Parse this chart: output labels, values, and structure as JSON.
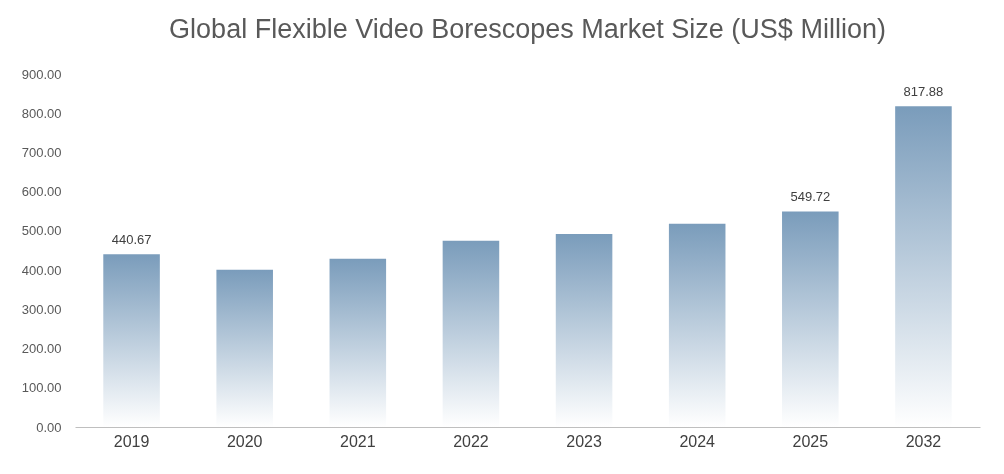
{
  "chart_data": {
    "type": "bar",
    "title": "Global Flexible Video Borescopes Market Size (US$ Million)",
    "categories": [
      "2019",
      "2020",
      "2021",
      "2022",
      "2023",
      "2024",
      "2025",
      "2032"
    ],
    "values": [
      440.67,
      401,
      429,
      475,
      492,
      518,
      549.72,
      817.88
    ],
    "value_labels": [
      "440.67",
      null,
      null,
      null,
      null,
      null,
      "549.72",
      "817.88"
    ],
    "color": "#7a9cbb",
    "ylim": [
      0,
      900
    ],
    "yticks": [
      {
        "value": 0,
        "label": "0.00"
      },
      {
        "value": 100,
        "label": "100.00"
      },
      {
        "value": 200,
        "label": "200.00"
      },
      {
        "value": 300,
        "label": "300.00"
      },
      {
        "value": 400,
        "label": "400.00"
      },
      {
        "value": 500,
        "label": "500.00"
      },
      {
        "value": 600,
        "label": "600.00"
      },
      {
        "value": 700,
        "label": "700.00"
      },
      {
        "value": 800,
        "label": "800.00"
      },
      {
        "value": 900,
        "label": "900.00"
      }
    ],
    "grid": false
  }
}
